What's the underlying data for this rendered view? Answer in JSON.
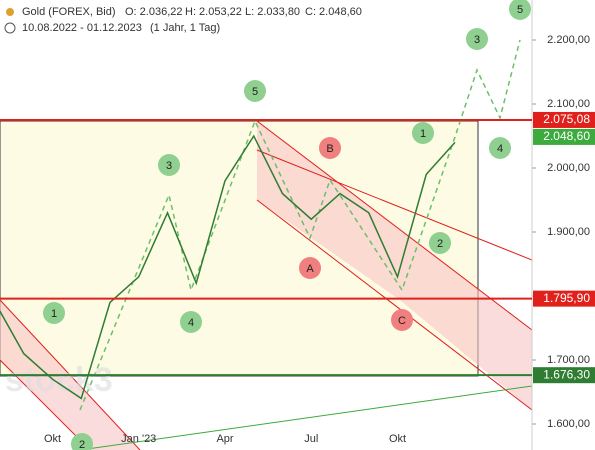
{
  "chart_data": {
    "type": "line",
    "title": "Gold (FOREX, Bid)",
    "ohlc": [
      "O: 2.036,22",
      "H: 2.053,22",
      "L: 2.033,80",
      "C: 2.048,60"
    ],
    "subtitle": "10.08.2022 - 01.12.2023",
    "period": "(1 Jahr, 1 Tag)",
    "watermark": "stock3",
    "categories": [
      null,
      null,
      "Okt",
      null,
      null,
      "Jan '23",
      null,
      null,
      "Apr",
      null,
      null,
      "Jul",
      null,
      null,
      "Okt",
      null,
      null
    ],
    "series": [
      {
        "name": "Gold",
        "color": "#2e7d32",
        "values": [
          1790,
          1710,
          1670,
          1640,
          1790,
          1830,
          1930,
          1820,
          1980,
          2050,
          1960,
          1920,
          1960,
          1930,
          1830,
          1990,
          2040
        ]
      }
    ],
    "ylim": [
      1559.4,
      2262.5
    ],
    "yticks": [
      {
        "value": 1600,
        "label": "1.600,00"
      },
      {
        "value": 1700,
        "label": "1.700,00"
      },
      {
        "value": 1800,
        "label": "1.800,00"
      },
      {
        "value": 1900,
        "label": "1.900,00"
      },
      {
        "value": 2000,
        "label": "2.000,00"
      },
      {
        "value": 2100,
        "label": "2.100,00"
      },
      {
        "value": 2200,
        "label": "2.200,00"
      }
    ],
    "levels": [
      {
        "value": 2075.08,
        "label": "2.075,08",
        "color": "#e0201b"
      },
      {
        "value": 2048.6,
        "label": "2.048,60",
        "color": "#3caa3c"
      },
      {
        "value": 1795.9,
        "label": "1.795,90",
        "color": "#e0201b"
      },
      {
        "value": 1676.3,
        "label": "1.676,30",
        "color": "#2e7d32"
      }
    ],
    "wave_labels": [
      "1",
      "2",
      "3",
      "4",
      "5",
      "1",
      "2",
      "3",
      "4",
      "5",
      "A",
      "B",
      "C"
    ]
  }
}
